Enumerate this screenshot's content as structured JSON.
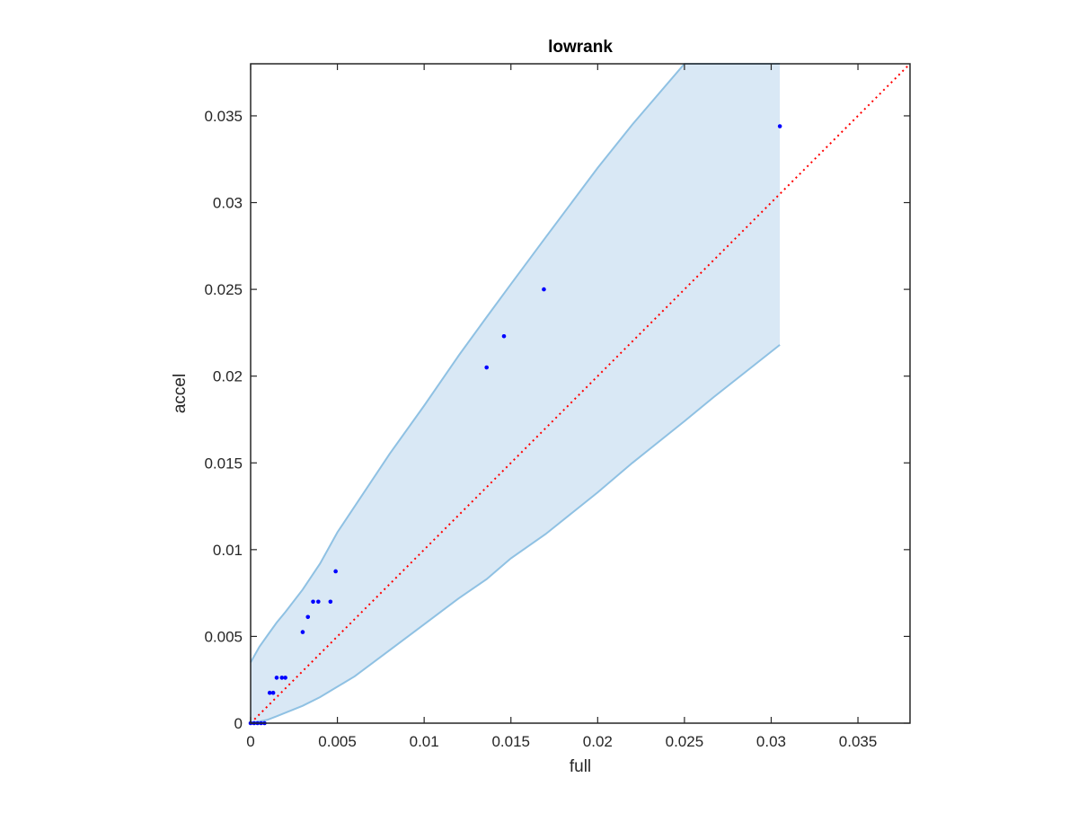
{
  "chart_data": {
    "type": "scatter",
    "title": "lowrank",
    "xlabel": "full",
    "ylabel": "accel",
    "xlim": [
      0,
      0.038
    ],
    "ylim": [
      0,
      0.038
    ],
    "xticks": [
      0,
      0.005,
      0.01,
      0.015,
      0.02,
      0.025,
      0.03,
      0.035
    ],
    "xtick_labels": [
      "0",
      "0.005",
      "0.01",
      "0.015",
      "0.02",
      "0.025",
      "0.03",
      "0.035"
    ],
    "yticks": [
      0,
      0.005,
      0.01,
      0.015,
      0.02,
      0.025,
      0.03,
      0.035
    ],
    "ytick_labels": [
      "0",
      "0.005",
      "0.01",
      "0.015",
      "0.02",
      "0.025",
      "0.03",
      "0.035"
    ],
    "grid": false,
    "colors": {
      "points": "#0000ff",
      "band_fill": "#d9e8f5",
      "band_edge": "#8fc1e3",
      "reference_line": "#ff0000",
      "axes": "#262626"
    },
    "points": [
      {
        "x": 0.0,
        "y": 0.0
      },
      {
        "x": 0.0002,
        "y": 0.0
      },
      {
        "x": 0.0004,
        "y": 0.0
      },
      {
        "x": 0.0006,
        "y": 0.0
      },
      {
        "x": 0.0008,
        "y": 0.0
      },
      {
        "x": 0.0011,
        "y": 0.00175
      },
      {
        "x": 0.0013,
        "y": 0.00175
      },
      {
        "x": 0.0015,
        "y": 0.00262
      },
      {
        "x": 0.0018,
        "y": 0.00262
      },
      {
        "x": 0.002,
        "y": 0.00262
      },
      {
        "x": 0.003,
        "y": 0.00525
      },
      {
        "x": 0.0033,
        "y": 0.00612
      },
      {
        "x": 0.0036,
        "y": 0.007
      },
      {
        "x": 0.0039,
        "y": 0.007
      },
      {
        "x": 0.0046,
        "y": 0.007
      },
      {
        "x": 0.0049,
        "y": 0.00875
      },
      {
        "x": 0.0136,
        "y": 0.0205
      },
      {
        "x": 0.0146,
        "y": 0.0223
      },
      {
        "x": 0.0169,
        "y": 0.025
      },
      {
        "x": 0.0305,
        "y": 0.0344
      }
    ],
    "band": {
      "x": [
        0,
        0.0005,
        0.001,
        0.0015,
        0.002,
        0.003,
        0.004,
        0.005,
        0.006,
        0.008,
        0.01,
        0.012,
        0.0136,
        0.015,
        0.017,
        0.02,
        0.022,
        0.025,
        0.0267,
        0.0305
      ],
      "upper": [
        0.0035,
        0.0044,
        0.0051,
        0.0058,
        0.0064,
        0.0077,
        0.0092,
        0.011,
        0.0125,
        0.0155,
        0.0183,
        0.0212,
        0.0234,
        0.0253,
        0.028,
        0.032,
        0.0345,
        0.0382,
        0.038,
        0.038
      ],
      "lower": [
        0,
        0.0001,
        0.0002,
        0.0004,
        0.0006,
        0.001,
        0.0015,
        0.0021,
        0.0027,
        0.0042,
        0.0057,
        0.0072,
        0.0083,
        0.0095,
        0.0109,
        0.0133,
        0.015,
        0.0174,
        0.0188,
        0.0218
      ]
    },
    "reference_line": {
      "x": [
        0,
        0.038
      ],
      "y": [
        0,
        0.038
      ],
      "style": "dotted"
    }
  }
}
